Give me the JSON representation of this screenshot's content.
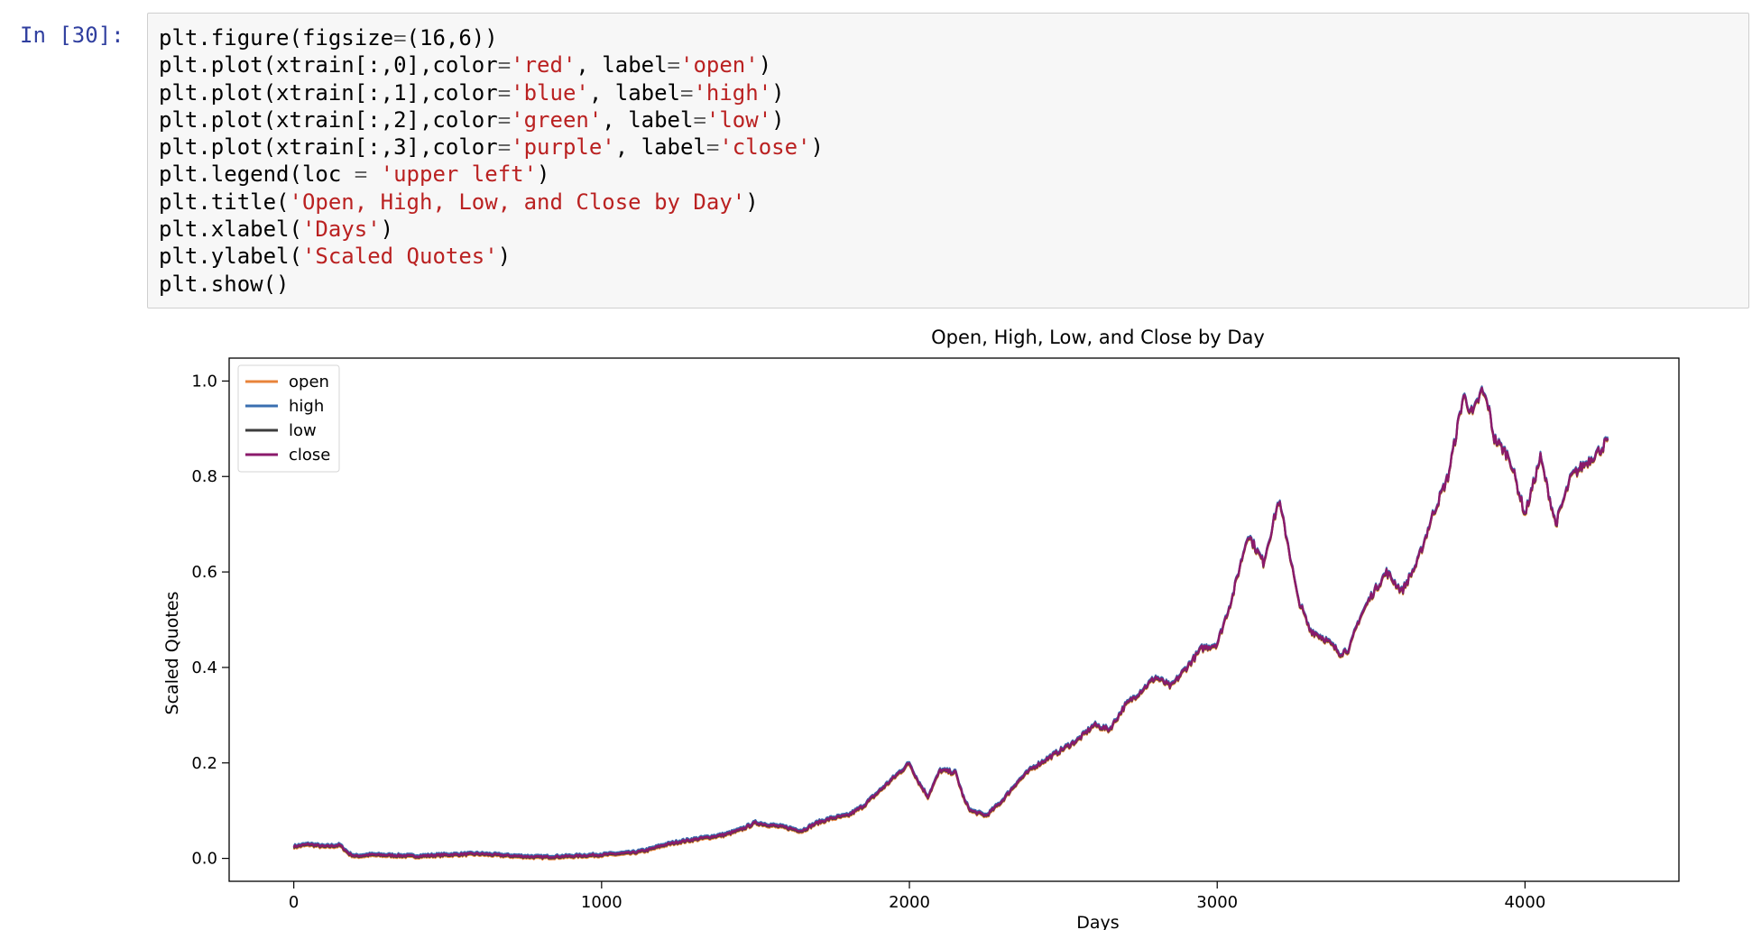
{
  "cell": {
    "prompt": "In [30]:",
    "code_lines": [
      [
        {
          "t": "plt.figure(figsize"
        },
        {
          "t": "=",
          "c": "o"
        },
        {
          "t": "(16,6))"
        }
      ],
      [
        {
          "t": "plt.plot(xtrain[:,0],color"
        },
        {
          "t": "=",
          "c": "o"
        },
        {
          "t": "'red'",
          "c": "s"
        },
        {
          "t": ", label"
        },
        {
          "t": "=",
          "c": "o"
        },
        {
          "t": "'open'",
          "c": "s"
        },
        {
          "t": ")"
        }
      ],
      [
        {
          "t": "plt.plot(xtrain[:,1],color"
        },
        {
          "t": "=",
          "c": "o"
        },
        {
          "t": "'blue'",
          "c": "s"
        },
        {
          "t": ", label"
        },
        {
          "t": "=",
          "c": "o"
        },
        {
          "t": "'high'",
          "c": "s"
        },
        {
          "t": ")"
        }
      ],
      [
        {
          "t": "plt.plot(xtrain[:,2],color"
        },
        {
          "t": "=",
          "c": "o"
        },
        {
          "t": "'green'",
          "c": "s"
        },
        {
          "t": ", label"
        },
        {
          "t": "=",
          "c": "o"
        },
        {
          "t": "'low'",
          "c": "s"
        },
        {
          "t": ")"
        }
      ],
      [
        {
          "t": "plt.plot(xtrain[:,3],color"
        },
        {
          "t": "=",
          "c": "o"
        },
        {
          "t": "'purple'",
          "c": "s"
        },
        {
          "t": ", label"
        },
        {
          "t": "=",
          "c": "o"
        },
        {
          "t": "'close'",
          "c": "s"
        },
        {
          "t": ")"
        }
      ],
      [
        {
          "t": "plt.legend(loc "
        },
        {
          "t": "=",
          "c": "o"
        },
        {
          "t": " "
        },
        {
          "t": "'upper left'",
          "c": "s"
        },
        {
          "t": ")"
        }
      ],
      [
        {
          "t": "plt.title("
        },
        {
          "t": "'Open, High, Low, and Close by Day'",
          "c": "s"
        },
        {
          "t": ")"
        }
      ],
      [
        {
          "t": "plt.xlabel("
        },
        {
          "t": "'Days'",
          "c": "s"
        },
        {
          "t": ")"
        }
      ],
      [
        {
          "t": "plt.ylabel("
        },
        {
          "t": "'Scaled Quotes'",
          "c": "s"
        },
        {
          "t": ")"
        }
      ],
      [
        {
          "t": "plt.show()"
        }
      ]
    ]
  },
  "chart_data": {
    "type": "line",
    "title": "Open, High, Low, and Close by Day",
    "xlabel": "Days",
    "ylabel": "Scaled Quotes",
    "xlim": [
      -210,
      4500
    ],
    "ylim": [
      -0.048,
      1.048
    ],
    "xticks": [
      0,
      1000,
      2000,
      3000,
      4000
    ],
    "xtick_labels": [
      "0",
      "1000",
      "2000",
      "3000",
      "4000"
    ],
    "yticks": [
      0.0,
      0.2,
      0.4,
      0.6,
      0.8,
      1.0
    ],
    "ytick_labels": [
      "0.0",
      "0.2",
      "0.4",
      "0.6",
      "0.8",
      "1.0"
    ],
    "grid": false,
    "legend_position": "upper left",
    "series": [
      {
        "name": "open",
        "color": "#e8833a",
        "offset": -0.004
      },
      {
        "name": "high",
        "color": "#3a6fb0",
        "offset": 0.003
      },
      {
        "name": "low",
        "color": "#3d3d3d",
        "offset": -0.002
      },
      {
        "name": "close",
        "color": "#8b1a6b",
        "offset": 0.0
      }
    ],
    "x": [
      0,
      50,
      100,
      150,
      180,
      200,
      250,
      300,
      400,
      500,
      600,
      700,
      800,
      900,
      1000,
      1100,
      1150,
      1200,
      1250,
      1300,
      1350,
      1400,
      1450,
      1500,
      1550,
      1600,
      1650,
      1700,
      1750,
      1800,
      1850,
      1900,
      1950,
      2000,
      2030,
      2060,
      2100,
      2150,
      2180,
      2200,
      2250,
      2300,
      2350,
      2400,
      2450,
      2500,
      2550,
      2600,
      2650,
      2700,
      2750,
      2800,
      2850,
      2900,
      2950,
      3000,
      3050,
      3100,
      3150,
      3200,
      3230,
      3260,
      3300,
      3350,
      3400,
      3430,
      3460,
      3500,
      3550,
      3600,
      3650,
      3700,
      3750,
      3800,
      3830,
      3860,
      3880,
      3900,
      3950,
      4000,
      4050,
      4100,
      4150,
      4200,
      4250,
      4270
    ],
    "values": [
      0.025,
      0.03,
      0.025,
      0.028,
      0.01,
      0.005,
      0.008,
      0.007,
      0.005,
      0.008,
      0.01,
      0.006,
      0.003,
      0.005,
      0.008,
      0.012,
      0.018,
      0.028,
      0.035,
      0.04,
      0.045,
      0.05,
      0.06,
      0.075,
      0.07,
      0.065,
      0.058,
      0.075,
      0.085,
      0.09,
      0.11,
      0.14,
      0.17,
      0.2,
      0.16,
      0.13,
      0.185,
      0.18,
      0.12,
      0.1,
      0.09,
      0.12,
      0.16,
      0.19,
      0.21,
      0.23,
      0.25,
      0.28,
      0.27,
      0.32,
      0.35,
      0.38,
      0.36,
      0.4,
      0.44,
      0.45,
      0.55,
      0.68,
      0.62,
      0.75,
      0.66,
      0.55,
      0.48,
      0.46,
      0.43,
      0.44,
      0.5,
      0.55,
      0.6,
      0.56,
      0.62,
      0.72,
      0.8,
      0.97,
      0.93,
      0.98,
      0.95,
      0.88,
      0.84,
      0.72,
      0.84,
      0.7,
      0.8,
      0.83,
      0.86,
      0.88
    ]
  }
}
